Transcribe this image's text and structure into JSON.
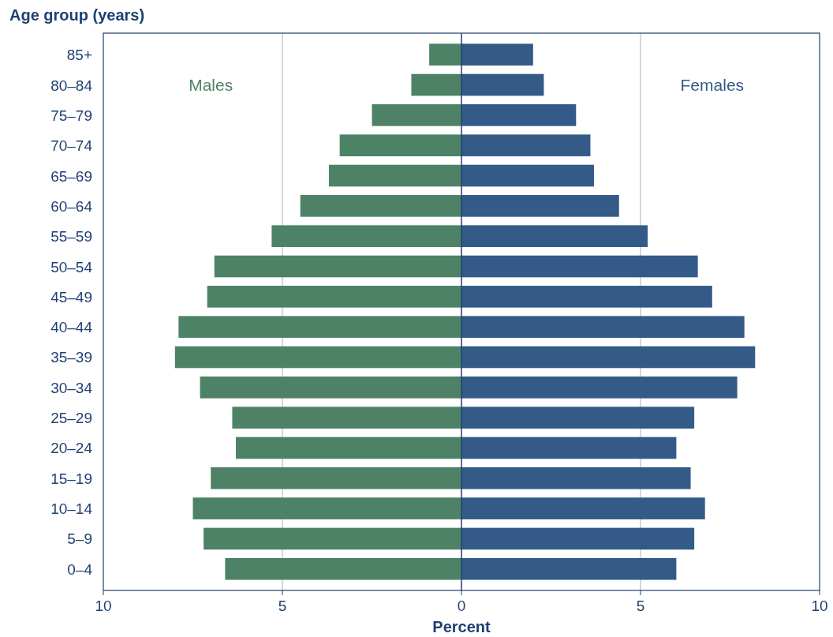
{
  "chart_data": {
    "type": "bar",
    "orientation": "horizontal",
    "xlabel": "Percent",
    "ylabel": "Age group (years)",
    "categories": [
      "85+",
      "80–84",
      "75–79",
      "70–74",
      "65–69",
      "60–64",
      "55–59",
      "50–54",
      "45–49",
      "40–44",
      "35–39",
      "30–34",
      "25–29",
      "20–24",
      "15–19",
      "10–14",
      "5–9",
      "0–4"
    ],
    "series": [
      {
        "name": "Males",
        "color": "#4e8266",
        "values": [
          -0.9,
          -1.4,
          -2.5,
          -3.4,
          -3.7,
          -4.5,
          -5.3,
          -6.9,
          -7.1,
          -7.9,
          -8.0,
          -7.3,
          -6.4,
          -6.3,
          -7.0,
          -7.5,
          -7.2,
          -6.6
        ]
      },
      {
        "name": "Females",
        "color": "#345a88",
        "values": [
          2.0,
          2.3,
          3.2,
          3.6,
          3.7,
          4.4,
          5.2,
          6.6,
          7.0,
          7.9,
          8.2,
          7.7,
          6.5,
          6.0,
          6.4,
          6.8,
          6.5,
          6.0
        ]
      }
    ],
    "xlim": [
      -10,
      10
    ],
    "xticks": [
      {
        "value": -10,
        "label": "10"
      },
      {
        "value": -5,
        "label": "5"
      },
      0,
      {
        "value": 5,
        "label": "5"
      },
      10
    ],
    "grid": "x",
    "stacked": true,
    "ref_lines": [
      {
        "axis": "x",
        "value": 0,
        "color": "#1f3f72"
      }
    ]
  }
}
